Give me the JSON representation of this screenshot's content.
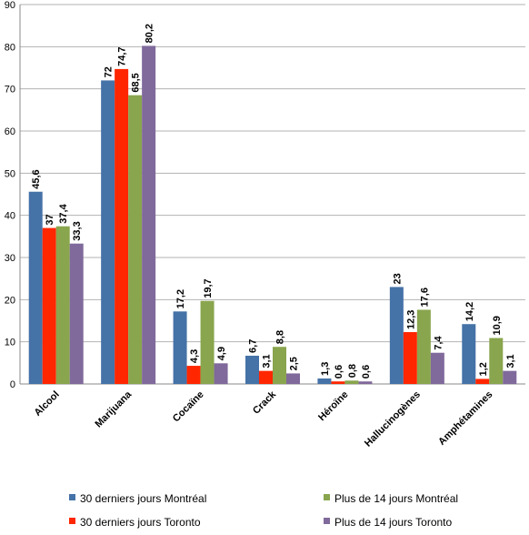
{
  "chart_data": {
    "type": "bar",
    "title": "",
    "xlabel": "",
    "ylabel": "",
    "ylim": [
      0,
      90
    ],
    "yticks": [
      0,
      10,
      20,
      30,
      40,
      50,
      60,
      70,
      80,
      90
    ],
    "grid": true,
    "legend_position": "bottom",
    "categories": [
      "Alcool",
      "Marijuana",
      "Cocaïne",
      "Crack",
      "Héroïne",
      "Hallucinogènes",
      "Amphétamines"
    ],
    "series": [
      {
        "name": "30 derniers jours Montréal",
        "color": "#4572a7",
        "values": [
          45.6,
          72,
          17.2,
          6.7,
          1.3,
          23,
          14.2
        ],
        "labels": [
          "45,6",
          "72",
          "17,2",
          "6,7",
          "1,3",
          "23",
          "14,2"
        ]
      },
      {
        "name": "30 derniers jours Toronto",
        "color": "#ff2600",
        "values": [
          37,
          74.7,
          4.3,
          3.1,
          0.6,
          12.3,
          1.2
        ],
        "labels": [
          "37",
          "74,7",
          "4,3",
          "3,1",
          "0,6",
          "12,3",
          "1,2"
        ]
      },
      {
        "name": "Plus de 14 jours Montréal",
        "color": "#89a54e",
        "values": [
          37.4,
          68.5,
          19.7,
          8.8,
          0.8,
          17.6,
          10.9
        ],
        "labels": [
          "37,4",
          "68,5",
          "19,7",
          "8,8",
          "0,8",
          "17,6",
          "10,9"
        ]
      },
      {
        "name": "Plus de 14 jours Toronto",
        "color": "#80699b",
        "values": [
          33.3,
          80.2,
          4.9,
          2.5,
          0.6,
          7.4,
          3.1
        ],
        "labels": [
          "33,3",
          "80,2",
          "4,9",
          "2,5",
          "0,6",
          "7,4",
          "3,1"
        ]
      }
    ]
  }
}
